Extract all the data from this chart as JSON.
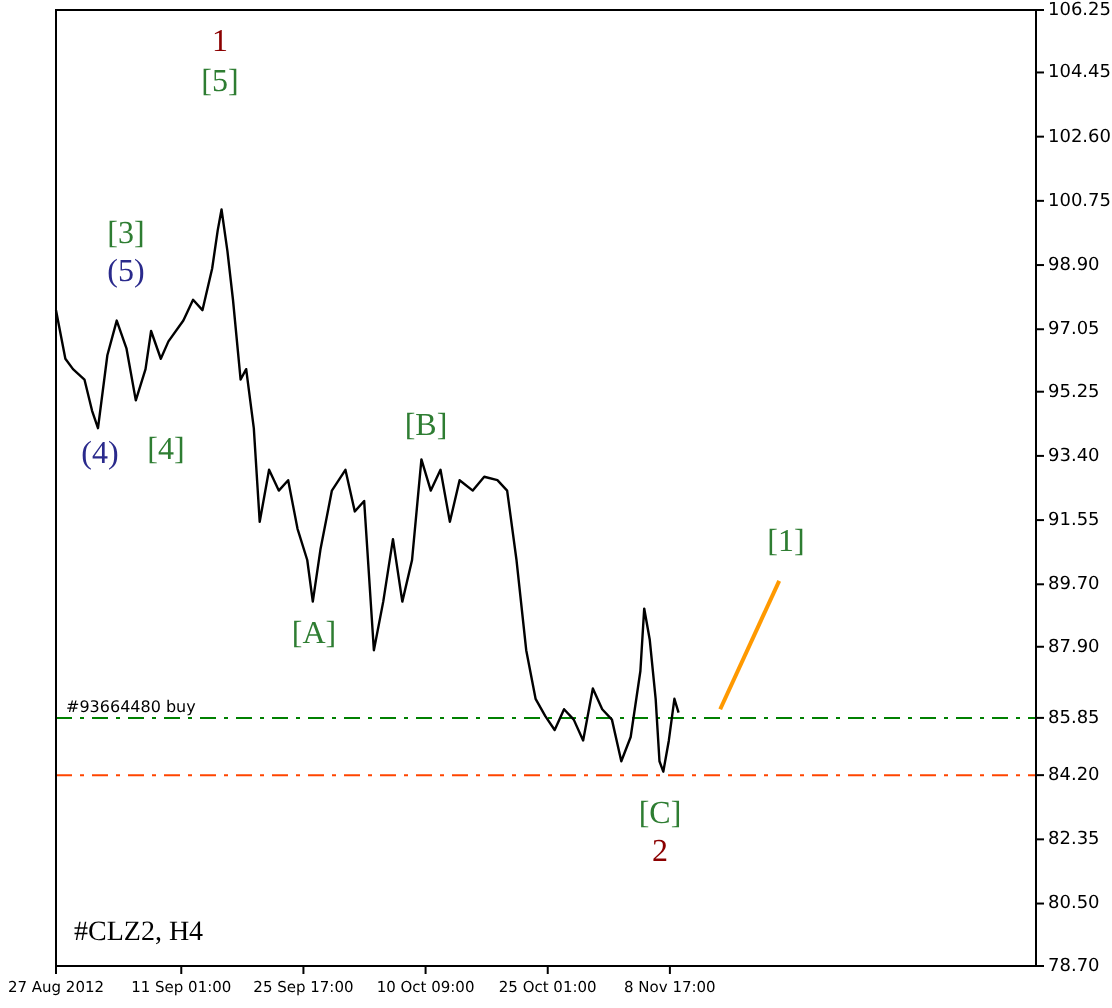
{
  "chart_data": {
    "type": "line",
    "title": "#CLZ2, H4",
    "xlim": [
      "2012-08-27T00:00",
      "2012-12-22T16:00"
    ],
    "xticks": [
      {
        "value": "2012-08-27T00:00",
        "label": "27 Aug 2012"
      },
      {
        "value": "2012-09-11T01:00",
        "label": "11 Sep 01:00"
      },
      {
        "value": "2012-09-25T17:00",
        "label": "25 Sep 17:00"
      },
      {
        "value": "2012-10-10T09:00",
        "label": "10 Oct 09:00"
      },
      {
        "value": "2012-10-25T01:00",
        "label": "25 Oct 01:00"
      },
      {
        "value": "2012-11-08T17:00",
        "label": "8 Nov 17:00"
      }
    ],
    "ylim": [
      78.7,
      106.25
    ],
    "yticks": [
      {
        "value": 106.25,
        "label": "106.25"
      },
      {
        "value": 104.45,
        "label": "104.45"
      },
      {
        "value": 102.6,
        "label": "102.60"
      },
      {
        "value": 100.75,
        "label": "100.75"
      },
      {
        "value": 98.9,
        "label": "98.90"
      },
      {
        "value": 97.05,
        "label": "97.05"
      },
      {
        "value": 95.25,
        "label": "95.25"
      },
      {
        "value": 93.4,
        "label": "93.40"
      },
      {
        "value": 91.55,
        "label": "91.55"
      },
      {
        "value": 89.7,
        "label": "89.70"
      },
      {
        "value": 87.9,
        "label": "87.90"
      },
      {
        "value": 85.85,
        "label": "85.85"
      },
      {
        "value": 84.2,
        "label": "84.20"
      },
      {
        "value": 82.35,
        "label": "82.35"
      },
      {
        "value": 80.5,
        "label": "80.50"
      },
      {
        "value": 78.7,
        "label": "78.70"
      }
    ],
    "grid": false,
    "series": [
      {
        "color": "#000000",
        "x": [
          "2012-08-27T00:00",
          "2012-08-28T03:00",
          "2012-08-29T01:00",
          "2012-08-30T10:00",
          "2012-08-31T08:00",
          "2012-09-01T01:00",
          "2012-09-02T04:00",
          "2012-09-03T07:00",
          "2012-09-04T11:00",
          "2012-09-05T14:00",
          "2012-09-06T18:00",
          "2012-09-07T10:00",
          "2012-09-08T14:00",
          "2012-09-09T12:00",
          "2012-09-11T07:00",
          "2012-09-12T11:00",
          "2012-09-13T14:00",
          "2012-09-14T18:00",
          "2012-09-15T10:00",
          "2012-09-15T21:00",
          "2012-09-16T14:00",
          "2012-09-17T06:00",
          "2012-09-18T04:00",
          "2012-09-18T20:00",
          "2012-09-19T18:00",
          "2012-09-20T11:00",
          "2012-09-21T14:00",
          "2012-09-22T18:00",
          "2012-09-23T21:00",
          "2012-09-25T00:00",
          "2012-09-26T04:00",
          "2012-09-26T20:00",
          "2012-09-27T18:00",
          "2012-09-29T03:00",
          "2012-09-30T18:00",
          "2012-10-01T21:00",
          "2012-10-03T00:00",
          "2012-10-04T04:00",
          "2012-10-05T07:00",
          "2012-10-06T11:00",
          "2012-10-07T14:00",
          "2012-10-08T18:00",
          "2012-10-09T21:00",
          "2012-10-11T00:00",
          "2012-10-12T04:00",
          "2012-10-13T07:00",
          "2012-10-14T11:00",
          "2012-10-16T01:00",
          "2012-10-17T10:00",
          "2012-10-19T00:00",
          "2012-10-20T04:00",
          "2012-10-21T07:00",
          "2012-10-22T11:00",
          "2012-10-23T14:00",
          "2012-10-24T18:00",
          "2012-10-25T21:00",
          "2012-10-27T00:00",
          "2012-10-28T04:00",
          "2012-10-29T07:00",
          "2012-10-30T11:00",
          "2012-10-31T14:00",
          "2012-11-01T18:00",
          "2012-11-02T21:00",
          "2012-11-04T00:00",
          "2012-11-05T04:00",
          "2012-11-05T15:00",
          "2012-11-06T07:00",
          "2012-11-07T00:00",
          "2012-11-07T11:00",
          "2012-11-07T22:00",
          "2012-11-08T14:00",
          "2012-11-09T06:00",
          "2012-11-09T18:00"
        ],
        "values": [
          97.6,
          96.2,
          95.9,
          95.6,
          94.7,
          94.2,
          96.3,
          97.3,
          96.5,
          95.0,
          95.9,
          97.0,
          96.2,
          96.7,
          97.3,
          97.9,
          97.6,
          98.8,
          99.9,
          100.5,
          99.3,
          97.9,
          95.6,
          95.9,
          94.2,
          91.5,
          93.0,
          92.4,
          92.7,
          91.3,
          90.4,
          89.2,
          90.7,
          92.4,
          93.0,
          91.8,
          92.1,
          87.8,
          89.2,
          91.0,
          89.2,
          90.4,
          93.3,
          92.4,
          93.0,
          91.5,
          92.7,
          92.4,
          92.8,
          92.7,
          92.4,
          90.4,
          87.8,
          86.4,
          85.9,
          85.5,
          86.1,
          85.8,
          85.2,
          86.7,
          86.1,
          85.8,
          84.6,
          85.3,
          87.2,
          89.0,
          88.1,
          86.4,
          84.6,
          84.3,
          85.2,
          86.4,
          86.0
        ]
      },
      {
        "color": "#ff9900",
        "x": [
          "2012-11-14T18:00",
          "2012-11-21T20:00"
        ],
        "values": [
          86.1,
          89.8
        ]
      }
    ],
    "ref_lines": [
      {
        "axis": "y",
        "value": 85.85,
        "label": "#93664480 buy",
        "color": "#008000",
        "line_style": "dashdot"
      },
      {
        "axis": "y",
        "value": 84.2,
        "color": "#ff4500",
        "line_style": "dashdot"
      }
    ],
    "annotations": [
      "1",
      "[5]",
      "[3]",
      "(5)",
      "(4)",
      "[4]",
      "[A]",
      "[B]",
      "[C]",
      "2",
      "[1]"
    ]
  }
}
